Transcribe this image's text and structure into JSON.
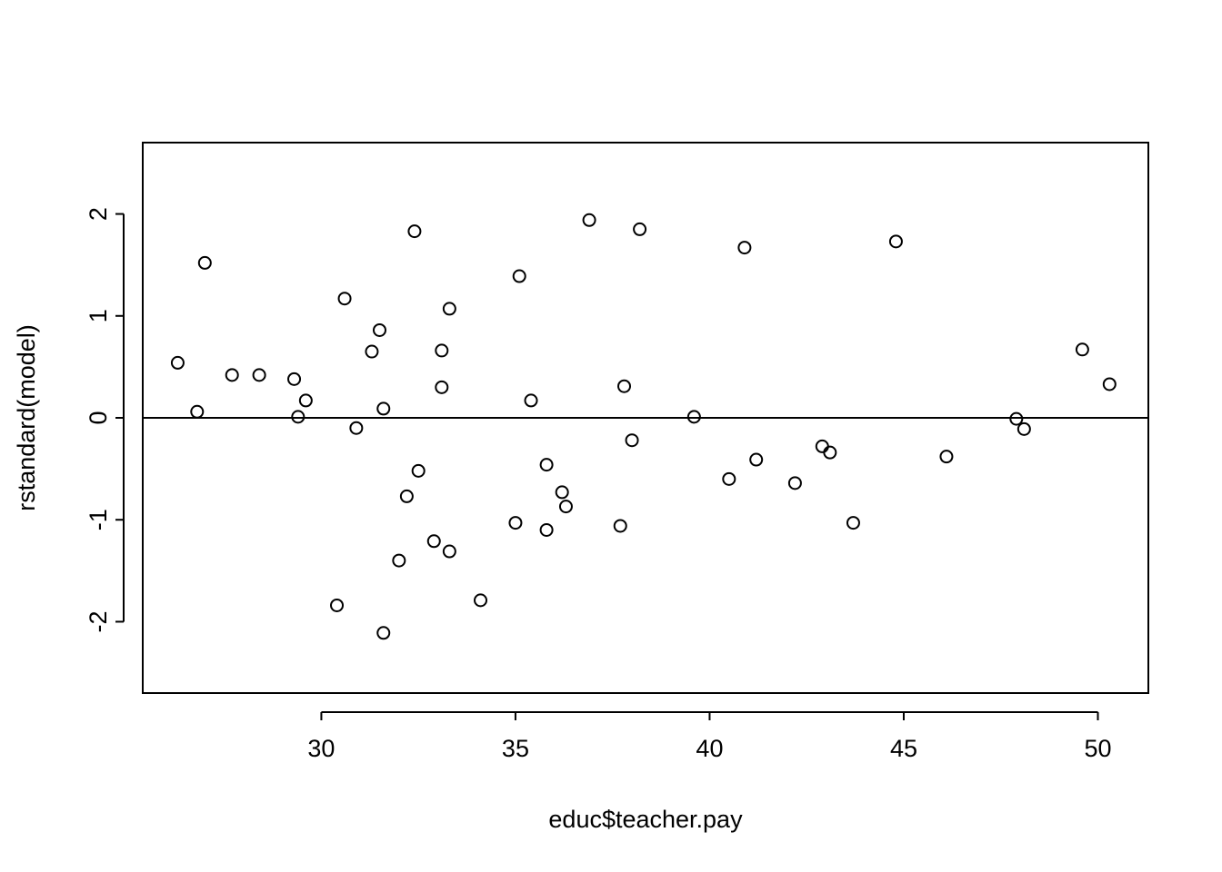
{
  "chart_data": {
    "type": "scatter",
    "xlabel": "educ$teacher.pay",
    "ylabel": "rstandard(model)",
    "xlim": [
      25.4,
      51.3
    ],
    "ylim": [
      -2.7,
      2.7
    ],
    "x_ticks": [
      30,
      35,
      40,
      45,
      50
    ],
    "x_tick_labels": [
      "30",
      "35",
      "40",
      "45",
      "50"
    ],
    "y_ticks": [
      -2,
      -1,
      0,
      1,
      2
    ],
    "y_tick_labels": [
      "-2",
      "-1",
      "0",
      "1",
      "2"
    ],
    "reference_line": 0,
    "grid": false,
    "marker": "open-circle",
    "points": [
      {
        "x": 26.3,
        "y": 0.54
      },
      {
        "x": 26.8,
        "y": 0.06
      },
      {
        "x": 27.0,
        "y": 1.52
      },
      {
        "x": 27.7,
        "y": 0.42
      },
      {
        "x": 28.4,
        "y": 0.42
      },
      {
        "x": 29.3,
        "y": 0.38
      },
      {
        "x": 29.4,
        "y": 0.01
      },
      {
        "x": 29.6,
        "y": 0.17
      },
      {
        "x": 30.4,
        "y": -1.84
      },
      {
        "x": 30.6,
        "y": 1.17
      },
      {
        "x": 30.9,
        "y": -0.1
      },
      {
        "x": 31.3,
        "y": 0.65
      },
      {
        "x": 31.5,
        "y": 0.86
      },
      {
        "x": 31.6,
        "y": 0.09
      },
      {
        "x": 31.6,
        "y": -2.11
      },
      {
        "x": 32.0,
        "y": -1.4
      },
      {
        "x": 32.2,
        "y": -0.77
      },
      {
        "x": 32.4,
        "y": 1.83
      },
      {
        "x": 32.5,
        "y": -0.52
      },
      {
        "x": 32.9,
        "y": -1.21
      },
      {
        "x": 33.1,
        "y": 0.66
      },
      {
        "x": 33.1,
        "y": 0.3
      },
      {
        "x": 33.3,
        "y": 1.07
      },
      {
        "x": 33.3,
        "y": -1.31
      },
      {
        "x": 34.1,
        "y": -1.79
      },
      {
        "x": 35.0,
        "y": -1.03
      },
      {
        "x": 35.1,
        "y": 1.39
      },
      {
        "x": 35.4,
        "y": 0.17
      },
      {
        "x": 35.8,
        "y": -0.46
      },
      {
        "x": 35.8,
        "y": -1.1
      },
      {
        "x": 36.2,
        "y": -0.73
      },
      {
        "x": 36.3,
        "y": -0.87
      },
      {
        "x": 36.9,
        "y": 1.94
      },
      {
        "x": 37.7,
        "y": -1.06
      },
      {
        "x": 37.8,
        "y": 0.31
      },
      {
        "x": 38.0,
        "y": -0.22
      },
      {
        "x": 38.2,
        "y": 1.85
      },
      {
        "x": 39.6,
        "y": 0.01
      },
      {
        "x": 40.5,
        "y": -0.6
      },
      {
        "x": 40.9,
        "y": 1.67
      },
      {
        "x": 41.2,
        "y": -0.41
      },
      {
        "x": 42.2,
        "y": -0.64
      },
      {
        "x": 42.9,
        "y": -0.28
      },
      {
        "x": 43.1,
        "y": -0.34
      },
      {
        "x": 43.7,
        "y": -1.03
      },
      {
        "x": 44.8,
        "y": 1.73
      },
      {
        "x": 46.1,
        "y": -0.38
      },
      {
        "x": 47.9,
        "y": -0.01
      },
      {
        "x": 48.1,
        "y": -0.11
      },
      {
        "x": 49.6,
        "y": 0.67
      },
      {
        "x": 50.3,
        "y": 0.33
      }
    ]
  }
}
